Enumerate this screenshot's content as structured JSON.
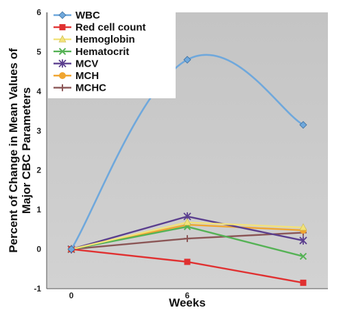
{
  "chart_data": {
    "type": "line",
    "title": "",
    "xlabel": "Weeks",
    "ylabel_line1": "Percent of Change in Mean Values of",
    "ylabel_line2": "Major CBC Parameters",
    "x": [
      0,
      6,
      12
    ],
    "x_tick_labels": [
      "0",
      "6",
      ""
    ],
    "ylim": [
      -1,
      6
    ],
    "y_ticks": [
      -1,
      0,
      1,
      2,
      3,
      4,
      5,
      6
    ],
    "grid": false,
    "legend_position": "top-left",
    "series": [
      {
        "name": "WBC",
        "values": [
          0,
          4.8,
          3.15
        ],
        "color": "#6fa8dc",
        "marker": "diamond",
        "smooth": true
      },
      {
        "name": "Red cell count",
        "values": [
          0,
          -0.32,
          -0.85
        ],
        "color": "#e03030",
        "marker": "square"
      },
      {
        "name": "Hemoglobin",
        "values": [
          0,
          0.68,
          0.55
        ],
        "color": "#f2e27a",
        "marker": "triangle"
      },
      {
        "name": "Hematocrit",
        "values": [
          0,
          0.57,
          -0.18
        ],
        "color": "#55b255",
        "marker": "x"
      },
      {
        "name": "MCV",
        "values": [
          0,
          0.83,
          0.22
        ],
        "color": "#5a3e8e",
        "marker": "asterisk"
      },
      {
        "name": "MCH",
        "values": [
          0,
          0.62,
          0.48
        ],
        "color": "#f0a530",
        "marker": "circle"
      },
      {
        "name": "MCHC",
        "values": [
          0,
          0.27,
          0.42
        ],
        "color": "#8a5555",
        "marker": "plus"
      }
    ]
  }
}
